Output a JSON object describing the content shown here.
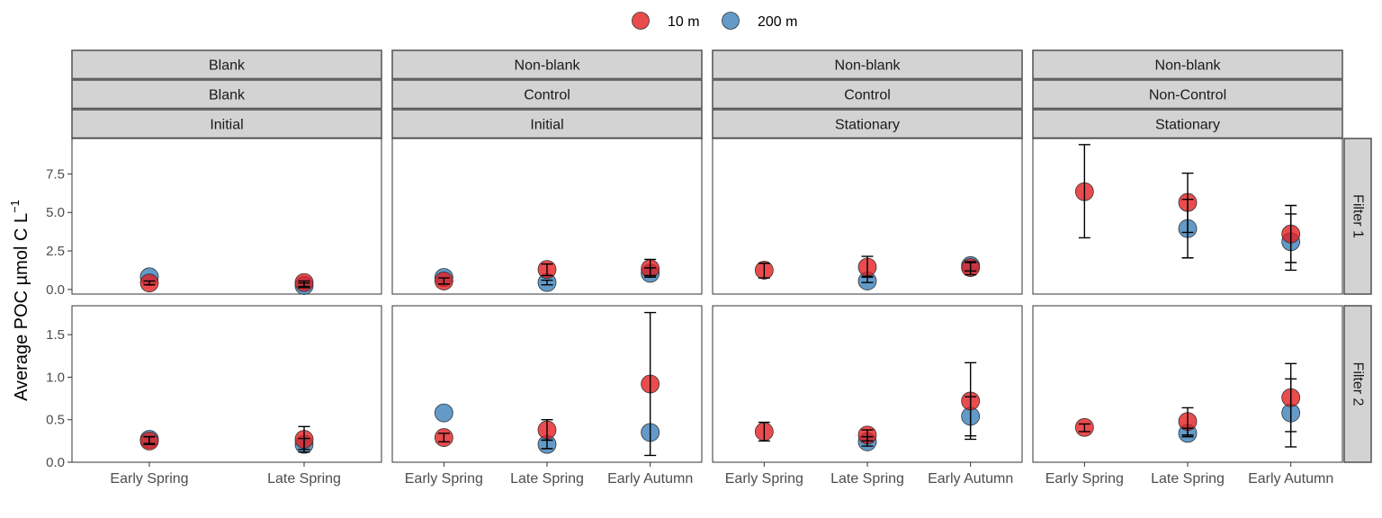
{
  "chart_data": {
    "type": "scatter",
    "ylabel": "Average POC µmol C L",
    "ylabel_superscript": "−1",
    "legend": {
      "placement": "top",
      "items": [
        {
          "name": "10 m",
          "color": "#e41a1c"
        },
        {
          "name": "200 m",
          "color": "#377eb8"
        }
      ]
    },
    "rows": [
      {
        "label": "Filter 1",
        "ylim": [
          -0.3,
          9.8
        ],
        "yticks": [
          0.0,
          2.5,
          5.0,
          7.5
        ],
        "ytick_labels": [
          "0.0",
          "2.5",
          "5.0",
          "7.5"
        ]
      },
      {
        "label": "Filter 2",
        "ylim": [
          0.0,
          1.84
        ],
        "yticks": [
          0.0,
          0.5,
          1.0,
          1.5
        ],
        "ytick_labels": [
          "0.0",
          "0.5",
          "1.0",
          "1.5"
        ]
      }
    ],
    "columns": [
      {
        "strips": [
          "Blank",
          "Blank",
          "Initial"
        ],
        "categories": [
          "Early Spring",
          "Late Spring"
        ],
        "panels": [
          {
            "series": [
              {
                "name": "10 m",
                "points": [
                  {
                    "x": "Early Spring",
                    "y": 0.42,
                    "lo": 0.3,
                    "hi": 0.55
                  },
                  {
                    "x": "Late Spring",
                    "y": 0.45,
                    "lo": 0.2,
                    "hi": 0.55
                  }
                ]
              },
              {
                "name": "200 m",
                "points": [
                  {
                    "x": "Early Spring",
                    "y": 0.82,
                    "lo": null,
                    "hi": null
                  },
                  {
                    "x": "Late Spring",
                    "y": 0.25,
                    "lo": 0.12,
                    "hi": 0.42
                  }
                ]
              }
            ]
          },
          {
            "series": [
              {
                "name": "10 m",
                "points": [
                  {
                    "x": "Early Spring",
                    "y": 0.25,
                    "lo": 0.21,
                    "hi": 0.3
                  },
                  {
                    "x": "Late Spring",
                    "y": 0.27,
                    "lo": 0.12,
                    "hi": 0.42
                  }
                ]
              },
              {
                "name": "200 m",
                "points": [
                  {
                    "x": "Early Spring",
                    "y": 0.27,
                    "lo": 0.22,
                    "hi": 0.3
                  },
                  {
                    "x": "Late Spring",
                    "y": 0.21,
                    "lo": 0.15,
                    "hi": 0.28
                  }
                ]
              }
            ]
          }
        ]
      },
      {
        "strips": [
          "Non-blank",
          "Control",
          "Initial"
        ],
        "categories": [
          "Early Spring",
          "Late Spring",
          "Early Autumn"
        ],
        "panels": [
          {
            "series": [
              {
                "name": "10 m",
                "points": [
                  {
                    "x": "Early Spring",
                    "y": 0.55,
                    "lo": 0.35,
                    "hi": 0.75
                  },
                  {
                    "x": "Late Spring",
                    "y": 1.3,
                    "lo": 0.9,
                    "hi": 1.65
                  },
                  {
                    "x": "Early Autumn",
                    "y": 1.35,
                    "lo": 0.9,
                    "hi": 1.95
                  }
                ]
              },
              {
                "name": "200 m",
                "points": [
                  {
                    "x": "Early Spring",
                    "y": 0.78,
                    "lo": null,
                    "hi": null
                  },
                  {
                    "x": "Late Spring",
                    "y": 0.45,
                    "lo": 0.3,
                    "hi": 0.6
                  },
                  {
                    "x": "Early Autumn",
                    "y": 1.05,
                    "lo": 0.8,
                    "hi": 1.4
                  }
                ]
              }
            ]
          },
          {
            "series": [
              {
                "name": "10 m",
                "points": [
                  {
                    "x": "Early Spring",
                    "y": 0.29,
                    "lo": 0.24,
                    "hi": 0.34
                  },
                  {
                    "x": "Late Spring",
                    "y": 0.38,
                    "lo": 0.26,
                    "hi": 0.5
                  },
                  {
                    "x": "Early Autumn",
                    "y": 0.92,
                    "lo": 0.08,
                    "hi": 1.76
                  }
                ]
              },
              {
                "name": "200 m",
                "points": [
                  {
                    "x": "Early Spring",
                    "y": 0.58,
                    "lo": null,
                    "hi": null
                  },
                  {
                    "x": "Late Spring",
                    "y": 0.21,
                    "lo": 0.16,
                    "hi": 0.26
                  },
                  {
                    "x": "Early Autumn",
                    "y": 0.35,
                    "lo": null,
                    "hi": null
                  }
                ]
              }
            ]
          }
        ]
      },
      {
        "strips": [
          "Non-blank",
          "Control",
          "Stationary"
        ],
        "categories": [
          "Early Spring",
          "Late Spring",
          "Early Autumn"
        ],
        "panels": [
          {
            "series": [
              {
                "name": "10 m",
                "points": [
                  {
                    "x": "Early Spring",
                    "y": 1.25,
                    "lo": 0.75,
                    "hi": 1.7
                  },
                  {
                    "x": "Late Spring",
                    "y": 1.45,
                    "lo": 0.85,
                    "hi": 2.15
                  },
                  {
                    "x": "Early Autumn",
                    "y": 1.42,
                    "lo": 0.95,
                    "hi": 1.8
                  }
                ]
              },
              {
                "name": "200 m",
                "points": [
                  {
                    "x": "Early Spring",
                    "y": null,
                    "lo": null,
                    "hi": null
                  },
                  {
                    "x": "Late Spring",
                    "y": 0.55,
                    "lo": 0.45,
                    "hi": 0.8
                  },
                  {
                    "x": "Early Autumn",
                    "y": 1.55,
                    "lo": 1.2,
                    "hi": 1.75
                  }
                ]
              }
            ]
          },
          {
            "series": [
              {
                "name": "10 m",
                "points": [
                  {
                    "x": "Early Spring",
                    "y": 0.36,
                    "lo": 0.25,
                    "hi": 0.47
                  },
                  {
                    "x": "Late Spring",
                    "y": 0.32,
                    "lo": 0.25,
                    "hi": 0.38
                  },
                  {
                    "x": "Early Autumn",
                    "y": 0.72,
                    "lo": 0.27,
                    "hi": 1.17
                  }
                ]
              },
              {
                "name": "200 m",
                "points": [
                  {
                    "x": "Early Spring",
                    "y": null,
                    "lo": null,
                    "hi": null
                  },
                  {
                    "x": "Late Spring",
                    "y": 0.24,
                    "lo": 0.19,
                    "hi": 0.3
                  },
                  {
                    "x": "Early Autumn",
                    "y": 0.54,
                    "lo": 0.31,
                    "hi": 0.77
                  }
                ]
              }
            ]
          }
        ]
      },
      {
        "strips": [
          "Non-blank",
          "Non-Control",
          "Stationary"
        ],
        "categories": [
          "Early Spring",
          "Late Spring",
          "Early Autumn"
        ],
        "panels": [
          {
            "series": [
              {
                "name": "10 m",
                "points": [
                  {
                    "x": "Early Spring",
                    "y": 6.35,
                    "lo": 3.35,
                    "hi": 9.4
                  },
                  {
                    "x": "Late Spring",
                    "y": 5.65,
                    "lo": 3.7,
                    "hi": 7.55
                  },
                  {
                    "x": "Early Autumn",
                    "y": 3.6,
                    "lo": 1.75,
                    "hi": 5.45
                  }
                ]
              },
              {
                "name": "200 m",
                "points": [
                  {
                    "x": "Early Spring",
                    "y": null,
                    "lo": null,
                    "hi": null
                  },
                  {
                    "x": "Late Spring",
                    "y": 3.95,
                    "lo": 2.05,
                    "hi": 5.85
                  },
                  {
                    "x": "Early Autumn",
                    "y": 3.1,
                    "lo": 1.25,
                    "hi": 4.9
                  }
                ]
              }
            ]
          },
          {
            "series": [
              {
                "name": "10 m",
                "points": [
                  {
                    "x": "Early Spring",
                    "y": 0.41,
                    "lo": 0.36,
                    "hi": 0.45
                  },
                  {
                    "x": "Late Spring",
                    "y": 0.48,
                    "lo": 0.32,
                    "hi": 0.64
                  },
                  {
                    "x": "Early Autumn",
                    "y": 0.76,
                    "lo": 0.36,
                    "hi": 1.16
                  }
                ]
              },
              {
                "name": "200 m",
                "points": [
                  {
                    "x": "Early Spring",
                    "y": null,
                    "lo": null,
                    "hi": null
                  },
                  {
                    "x": "Late Spring",
                    "y": 0.34,
                    "lo": 0.3,
                    "hi": 0.4
                  },
                  {
                    "x": "Early Autumn",
                    "y": 0.58,
                    "lo": 0.18,
                    "hi": 0.98
                  }
                ]
              }
            ]
          }
        ]
      }
    ]
  }
}
